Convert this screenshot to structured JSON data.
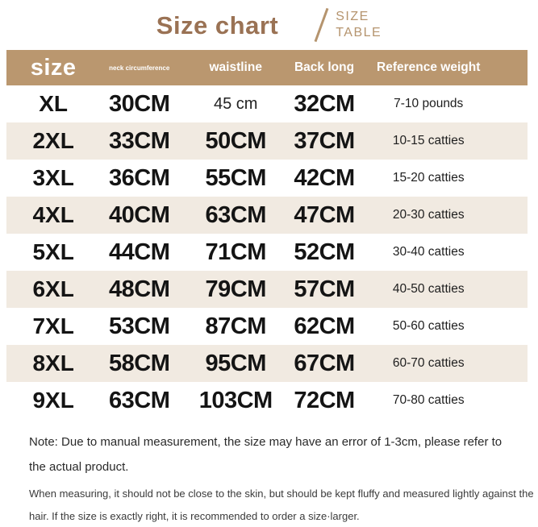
{
  "title": {
    "main": "Size chart",
    "side_line1": "SIZE",
    "side_line2": "TABLE"
  },
  "chart_data": {
    "type": "table",
    "title": "Size chart",
    "columns": [
      "size",
      "neck circumference",
      "waistline",
      "Back long",
      "Reference weight"
    ],
    "rows": [
      [
        "XL",
        "30CM",
        "45 cm",
        "32CM",
        "7-10 pounds"
      ],
      [
        "2XL",
        "33CM",
        "50CM",
        "37CM",
        "10-15 catties"
      ],
      [
        "3XL",
        "36CM",
        "55CM",
        "42CM",
        "15-20 catties"
      ],
      [
        "4XL",
        "40CM",
        "63CM",
        "47CM",
        "20-30 catties"
      ],
      [
        "5XL",
        "44CM",
        "71CM",
        "52CM",
        "30-40 catties"
      ],
      [
        "6XL",
        "48CM",
        "79CM",
        "57CM",
        "40-50 catties"
      ],
      [
        "7XL",
        "53CM",
        "87CM",
        "62CM",
        "50-60 catties"
      ],
      [
        "8XL",
        "58CM",
        "95CM",
        "67CM",
        "60-70 catties"
      ],
      [
        "9XL",
        "63CM",
        "103CM",
        "72CM",
        "70-80 catties"
      ]
    ]
  },
  "notes": {
    "line1": "Note: Due to manual measurement, the size may have an error of 1-3cm, please refer to",
    "line2": "the actual product.",
    "line3": "When measuring, it should not be close to the skin, but should be kept fluffy and measured lightly against the",
    "line4": "hair. If the size is exactly right, it is recommended to order a size·larger."
  },
  "colors": {
    "header_bg": "#ba976f",
    "alt_row_bg": "#f1eae1",
    "title_brown": "#9a7254",
    "tan_accent": "#b5946e",
    "header_text": "#ffffff",
    "body_text": "#141414"
  }
}
